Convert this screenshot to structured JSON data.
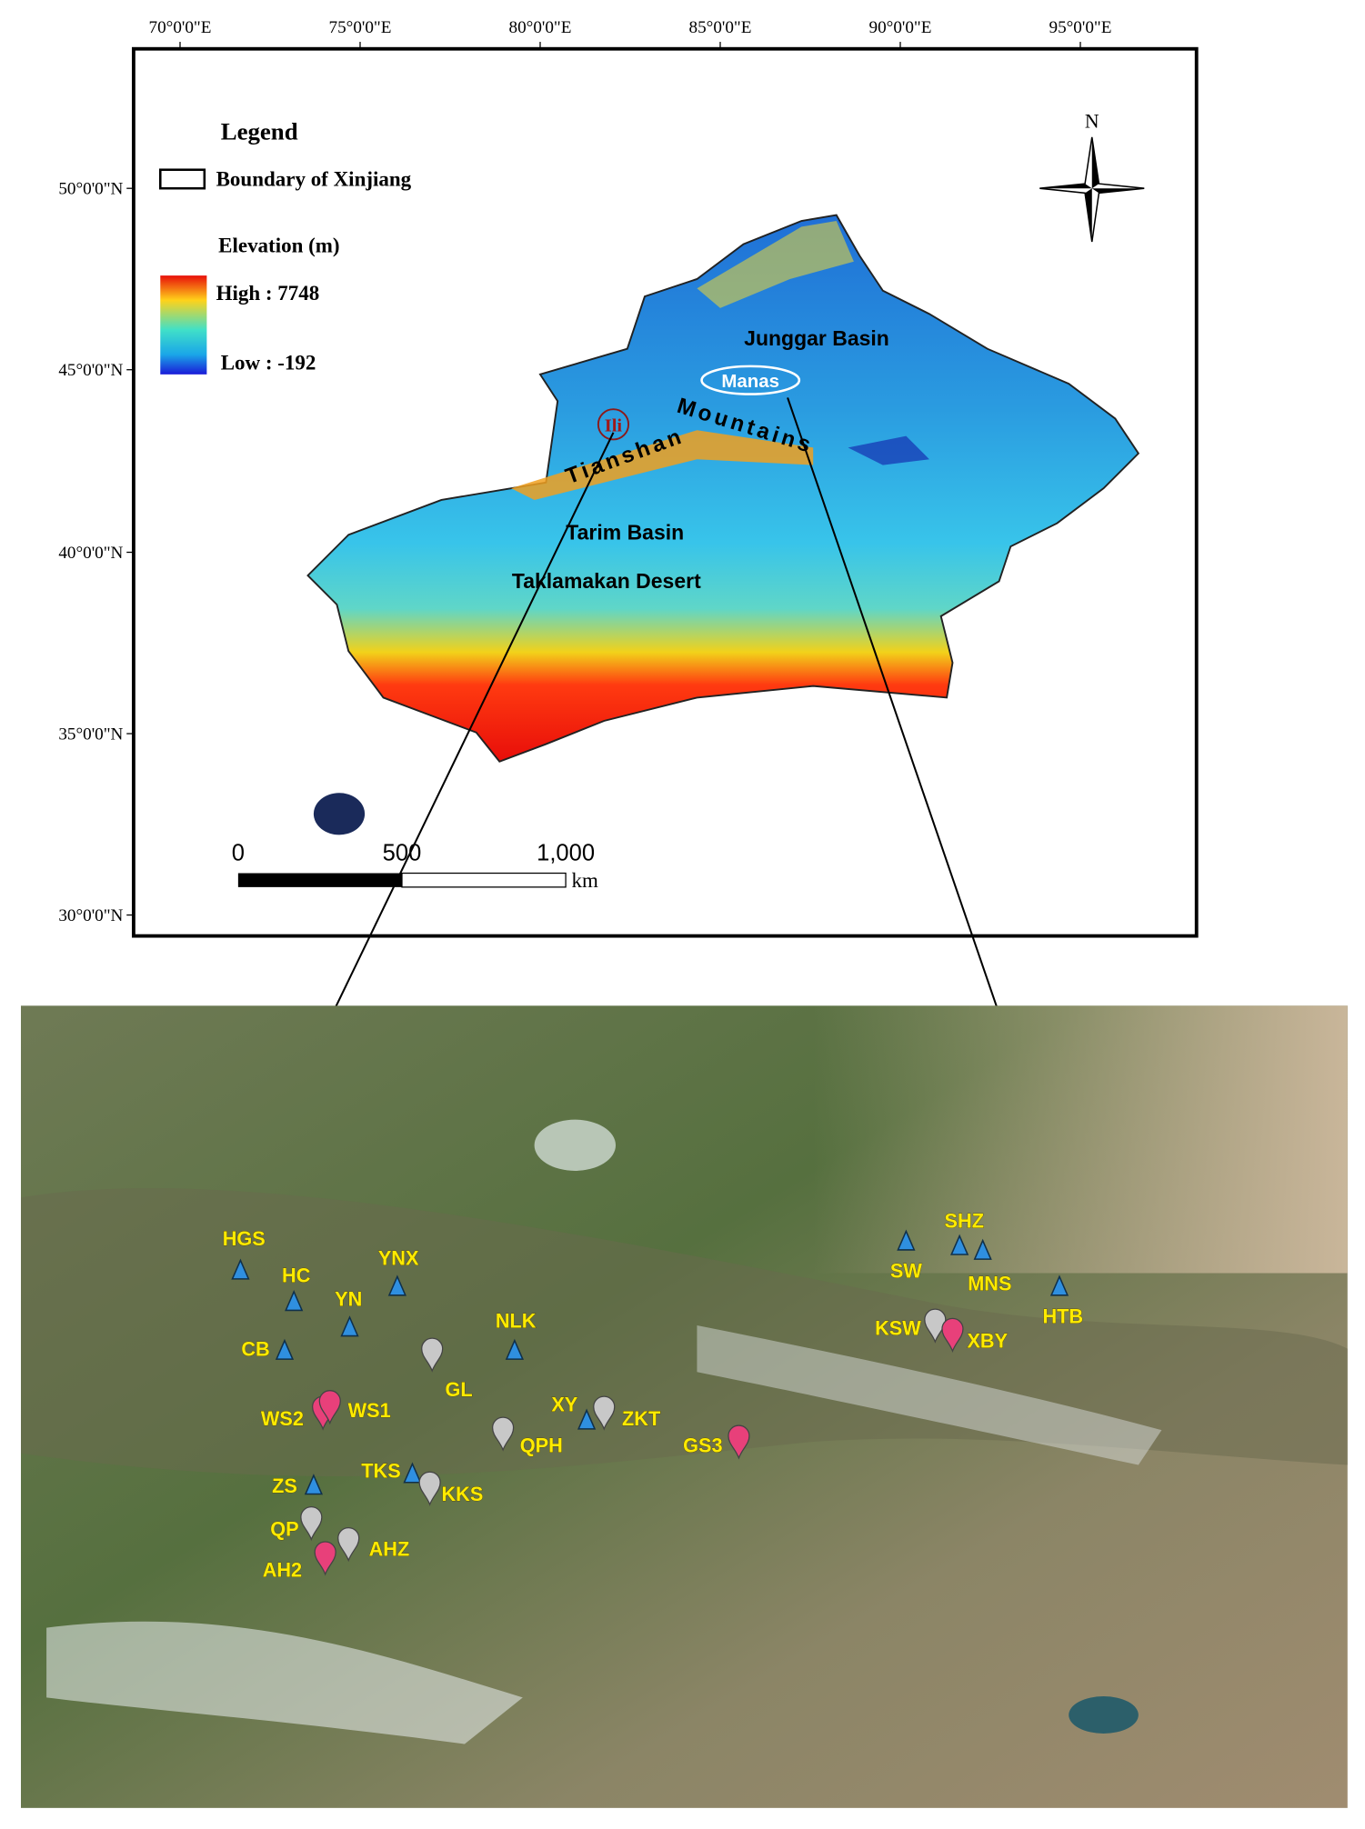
{
  "top_map": {
    "lon_labels": [
      "70°0'0\"E",
      "75°0'0\"E",
      "80°0'0\"E",
      "85°0'0\"E",
      "90°0'0\"E",
      "95°0'0\"E"
    ],
    "lat_labels": [
      "50°0'0\"N",
      "45°0'0\"N",
      "40°0'0\"N",
      "35°0'0\"N",
      "30°0'0\"N"
    ],
    "legend": {
      "title": "Legend",
      "boundary": "Boundary of Xinjiang",
      "elevation_title": "Elevation (m)",
      "high": "High : 7748",
      "low": "Low : -192"
    },
    "north": "N",
    "places": {
      "junggar": "Junggar Basin",
      "manas": "Manas",
      "ili": "Ili",
      "tianshan": "Tianshan",
      "mountains": "Mountains",
      "tarim": "Tarim Basin",
      "taklamakan": "Taklamakan Desert"
    },
    "scale_bar": {
      "labels": [
        "0",
        "500",
        "1,000"
      ],
      "unit": "km"
    }
  },
  "stations": [
    {
      "name": "HGS",
      "marker": "triangle"
    },
    {
      "name": "HC",
      "marker": "triangle"
    },
    {
      "name": "YNX",
      "marker": "triangle"
    },
    {
      "name": "YN",
      "marker": "triangle"
    },
    {
      "name": "CB",
      "marker": "triangle"
    },
    {
      "name": "NLK",
      "marker": "triangle"
    },
    {
      "name": "GL",
      "marker": "gray-pin"
    },
    {
      "name": "WS2",
      "marker": "pink-pin"
    },
    {
      "name": "WS1",
      "marker": "pink-pin"
    },
    {
      "name": "XY",
      "marker": "triangle"
    },
    {
      "name": "ZKT",
      "marker": "gray-pin"
    },
    {
      "name": "QPH",
      "marker": "gray-pin"
    },
    {
      "name": "GS3",
      "marker": "pink-pin"
    },
    {
      "name": "TKS",
      "marker": "triangle"
    },
    {
      "name": "KKS",
      "marker": "gray-pin"
    },
    {
      "name": "ZS",
      "marker": "triangle"
    },
    {
      "name": "QP",
      "marker": "gray-pin"
    },
    {
      "name": "AHZ",
      "marker": "gray-pin"
    },
    {
      "name": "AH2",
      "marker": "pink-pin"
    },
    {
      "name": "SW",
      "marker": "triangle"
    },
    {
      "name": "SHZ",
      "marker": "triangle"
    },
    {
      "name": "MNS",
      "marker": "triangle"
    },
    {
      "name": "HTB",
      "marker": "triangle"
    },
    {
      "name": "KSW",
      "marker": "gray-pin"
    },
    {
      "name": "XBY",
      "marker": "pink-pin"
    }
  ]
}
